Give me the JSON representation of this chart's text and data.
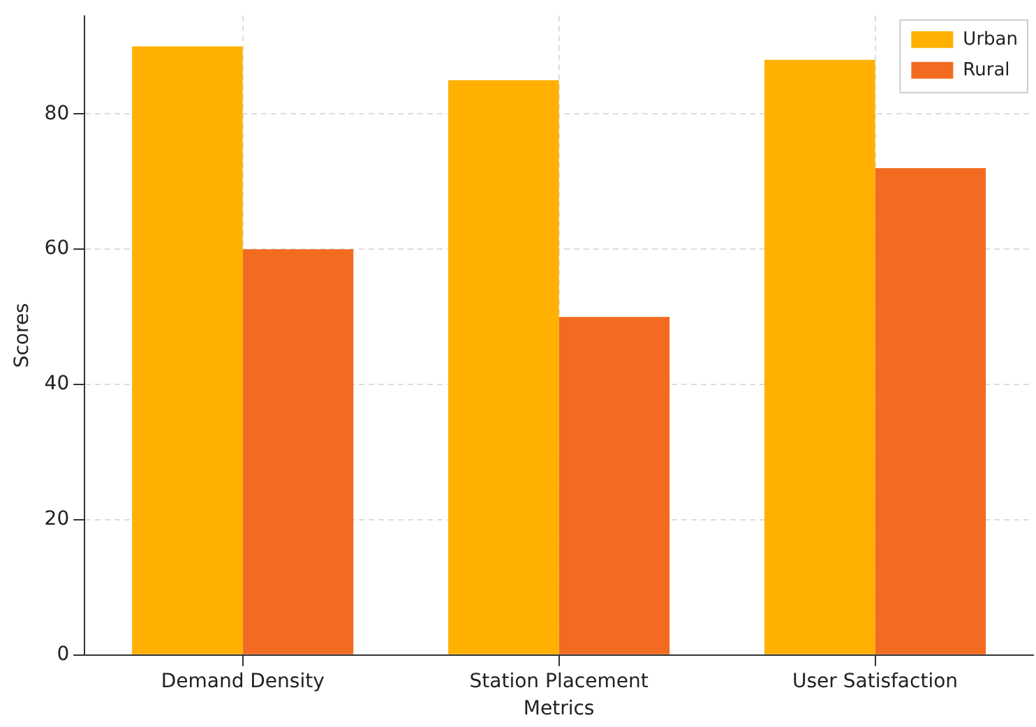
{
  "chart_data": {
    "type": "bar",
    "xlabel": "Metrics",
    "ylabel": "Scores",
    "categories": [
      "Demand Density",
      "Station Placement",
      "User Satisfaction"
    ],
    "series": [
      {
        "name": "Urban",
        "color": "#ffb000",
        "values": [
          90,
          85,
          88
        ]
      },
      {
        "name": "Rural",
        "color": "#f26b21",
        "values": [
          60,
          50,
          72
        ]
      }
    ],
    "ylim": [
      0,
      94.5
    ],
    "yticks": [
      0,
      20,
      40,
      60,
      80
    ],
    "grid": true,
    "legend": "top right"
  }
}
